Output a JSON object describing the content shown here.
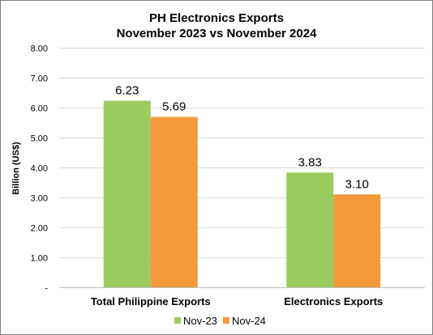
{
  "chart_data": {
    "type": "bar",
    "title_lines": [
      "PH Electronics Exports",
      "November 2023 vs November 2024"
    ],
    "ylabel": "Billion (US$)",
    "xlabel": "",
    "ylim": [
      0,
      8
    ],
    "y_ticks": [
      {
        "value": 0,
        "label": "-"
      },
      {
        "value": 1,
        "label": "1.00"
      },
      {
        "value": 2,
        "label": "2.00"
      },
      {
        "value": 3,
        "label": "3.00"
      },
      {
        "value": 4,
        "label": "4.00"
      },
      {
        "value": 5,
        "label": "5.00"
      },
      {
        "value": 6,
        "label": "6.00"
      },
      {
        "value": 7,
        "label": "7.00"
      },
      {
        "value": 8,
        "label": "8.00"
      }
    ],
    "categories": [
      "Total Philippine Exports",
      "Electronics Exports"
    ],
    "series": [
      {
        "name": "Nov-23",
        "color": "#9bca5f",
        "values": [
          6.23,
          3.83
        ],
        "labels": [
          "6.23",
          "3.83"
        ]
      },
      {
        "name": "Nov-24",
        "color": "#f29a3c",
        "values": [
          5.69,
          3.1
        ],
        "labels": [
          "5.69",
          "3.10"
        ]
      }
    ],
    "grid": true,
    "grid_color": "#d9d9d9",
    "legend_position": "bottom"
  }
}
